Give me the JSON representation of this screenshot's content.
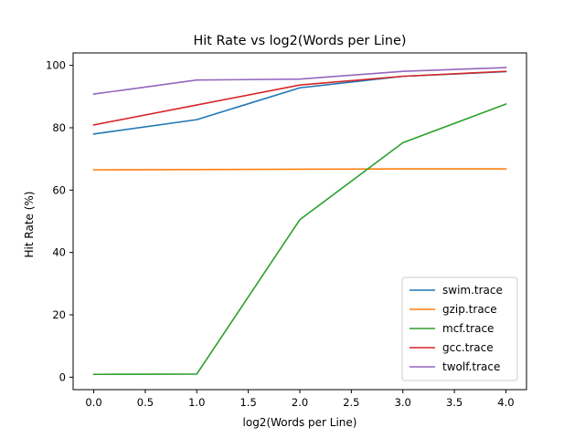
{
  "chart_data": {
    "type": "line",
    "title": "Hit Rate vs log2(Words per Line)",
    "xlabel": "log2(Words per Line)",
    "ylabel": "Hit Rate (%)",
    "x": [
      0,
      1,
      2,
      3,
      4
    ],
    "xlim": [
      -0.2,
      4.2
    ],
    "ylim": [
      -4,
      104
    ],
    "xticks": [
      0.0,
      0.5,
      1.0,
      1.5,
      2.0,
      2.5,
      3.0,
      3.5,
      4.0
    ],
    "xtick_labels": [
      "0.0",
      "0.5",
      "1.0",
      "1.5",
      "2.0",
      "2.5",
      "3.0",
      "3.5",
      "4.0"
    ],
    "yticks": [
      0,
      20,
      40,
      60,
      80,
      100
    ],
    "ytick_labels": [
      "0",
      "20",
      "40",
      "60",
      "80",
      "100"
    ],
    "grid": false,
    "legend_position": "lower-right",
    "series": [
      {
        "name": "swim.trace",
        "color": "#1f77b4",
        "values": [
          78.0,
          82.6,
          92.8,
          96.5,
          98.0
        ]
      },
      {
        "name": "gzip.trace",
        "color": "#ff7f0e",
        "values": [
          66.5,
          66.6,
          66.7,
          66.8,
          66.8
        ]
      },
      {
        "name": "mcf.trace",
        "color": "#2ca02c",
        "values": [
          0.9,
          1.0,
          50.5,
          75.2,
          87.6
        ]
      },
      {
        "name": "gcc.trace",
        "color": "#d62728",
        "values": [
          80.9,
          87.3,
          93.7,
          96.5,
          98.1
        ]
      },
      {
        "name": "twolf.trace",
        "color": "#9467bd",
        "values": [
          90.8,
          95.3,
          95.6,
          98.1,
          99.3
        ]
      }
    ]
  }
}
